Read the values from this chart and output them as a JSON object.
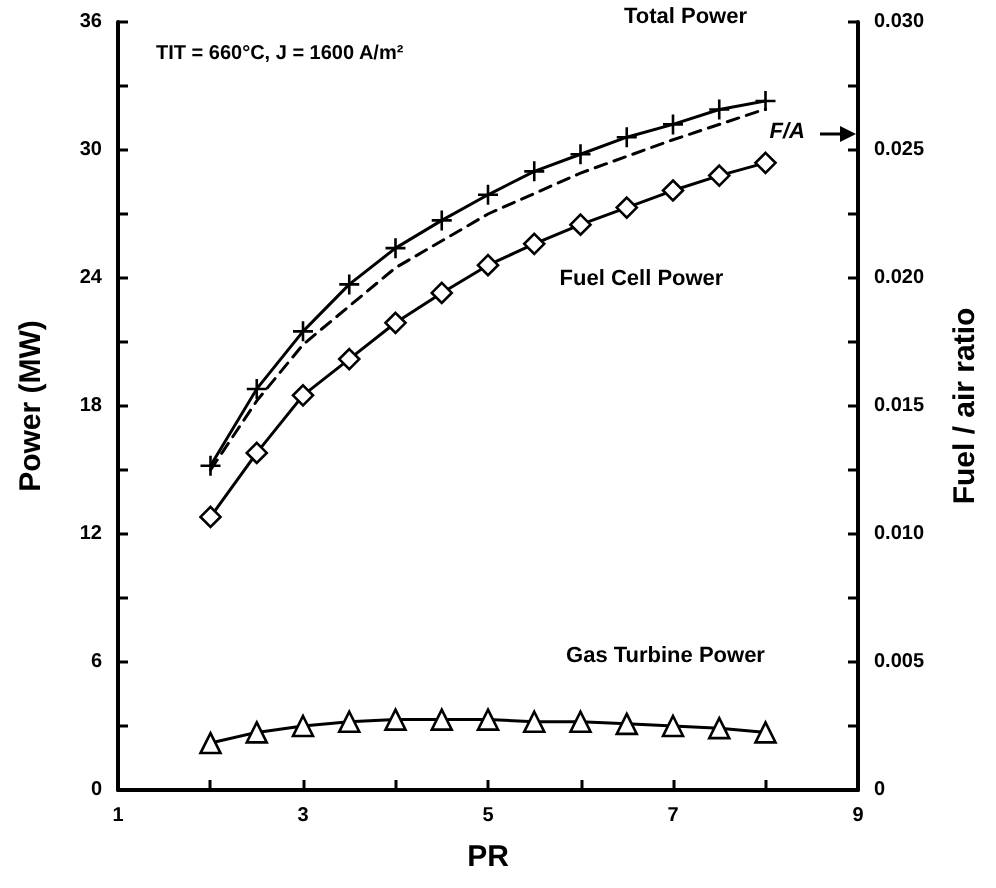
{
  "chart_data": {
    "type": "line",
    "xlabel": "PR",
    "ylabel": "Power (MW)",
    "y2label": "Fuel / air ratio",
    "annotations": [
      "TIT = 660°C, J = 1600 A/m²"
    ],
    "x": [
      2,
      2.5,
      3,
      3.5,
      4,
      4.5,
      5,
      5.5,
      6,
      6.5,
      7,
      7.5,
      8
    ],
    "series": [
      {
        "name": "Total Power",
        "color": "#000000",
        "marker": "cross",
        "line_style": "solid",
        "values": [
          15.2,
          18.8,
          21.5,
          23.7,
          25.4,
          26.7,
          27.9,
          29.0,
          29.8,
          30.6,
          31.2,
          31.9,
          32.3
        ]
      },
      {
        "name": "F/A",
        "color": "#000000",
        "marker": "none",
        "line_style": "dashed",
        "axis": "y2",
        "x": [
          2,
          2.5,
          3,
          4,
          5,
          6,
          7,
          8
        ],
        "values": [
          0.0125,
          0.0152,
          0.0174,
          0.0204,
          0.0225,
          0.0241,
          0.0254,
          0.0266
        ]
      },
      {
        "name": "Fuel Cell Power",
        "color": "#000000",
        "marker": "diamond",
        "line_style": "solid",
        "values": [
          12.8,
          15.8,
          18.5,
          20.2,
          21.9,
          23.3,
          24.6,
          25.6,
          26.5,
          27.3,
          28.1,
          28.8,
          29.4
        ]
      },
      {
        "name": "Gas Turbine Power",
        "color": "#000000",
        "marker": "triangle",
        "line_style": "solid",
        "values": [
          2.2,
          2.7,
          3.0,
          3.2,
          3.3,
          3.3,
          3.3,
          3.2,
          3.2,
          3.1,
          3.0,
          2.9,
          2.7
        ]
      }
    ],
    "xlim": [
      1,
      9
    ],
    "xticks": [
      1,
      {
        "value": 2,
        "label": null
      },
      3,
      {
        "value": 4,
        "label": null
      },
      5,
      {
        "value": 6,
        "label": null
      },
      7,
      {
        "value": 8,
        "label": null
      },
      9
    ],
    "ylim": [
      0,
      36
    ],
    "yticks": [
      0,
      {
        "value": 3,
        "label": null
      },
      6,
      {
        "value": 9,
        "label": null
      },
      12,
      {
        "value": 15,
        "label": null
      },
      18,
      {
        "value": 21,
        "label": null
      },
      24,
      {
        "value": 27,
        "label": null
      },
      30,
      {
        "value": 33,
        "label": null
      },
      36
    ],
    "y2lim": [
      0,
      0.03
    ],
    "y2ticks": [
      0,
      {
        "value": 0.0025,
        "label": null
      },
      0.005,
      {
        "value": 0.0075,
        "label": null
      },
      {
        "value": 0.01,
        "label": "0.010"
      },
      {
        "value": 0.0125,
        "label": null
      },
      0.015,
      {
        "value": 0.0175,
        "label": null
      },
      {
        "value": 0.02,
        "label": "0.020"
      },
      {
        "value": 0.0225,
        "label": null
      },
      0.025,
      {
        "value": 0.0275,
        "label": null
      },
      {
        "value": 0.03,
        "label": "0.030"
      }
    ],
    "grid": false
  }
}
